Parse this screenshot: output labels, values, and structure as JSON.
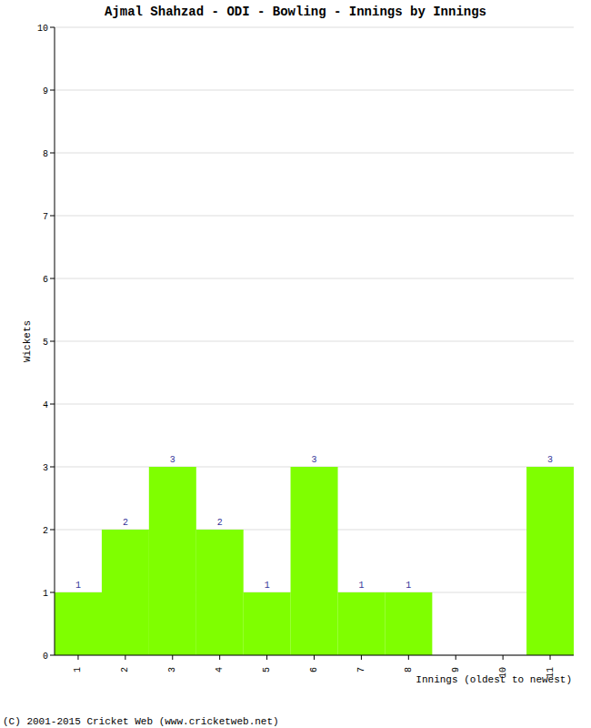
{
  "chart_data": {
    "type": "bar",
    "title": "Ajmal Shahzad - ODI - Bowling - Innings by Innings",
    "x_label": "Innings (oldest to newest)",
    "y_label": "Wickets",
    "annotations": [
      "(C) 2001-2015 Cricket Web (www.cricketweb.net)"
    ],
    "categories": [
      "1",
      "2",
      "3",
      "4",
      "5",
      "6",
      "7",
      "8",
      "9",
      "10",
      "11"
    ],
    "values": [
      1,
      2,
      3,
      2,
      1,
      3,
      1,
      1,
      0,
      0,
      3
    ],
    "color": "#7fff00",
    "ylim": [
      0,
      10
    ],
    "yticks": [
      0,
      1,
      2,
      3,
      4,
      5,
      6,
      7,
      8,
      9,
      10
    ],
    "grid": true,
    "data_labels": true
  }
}
